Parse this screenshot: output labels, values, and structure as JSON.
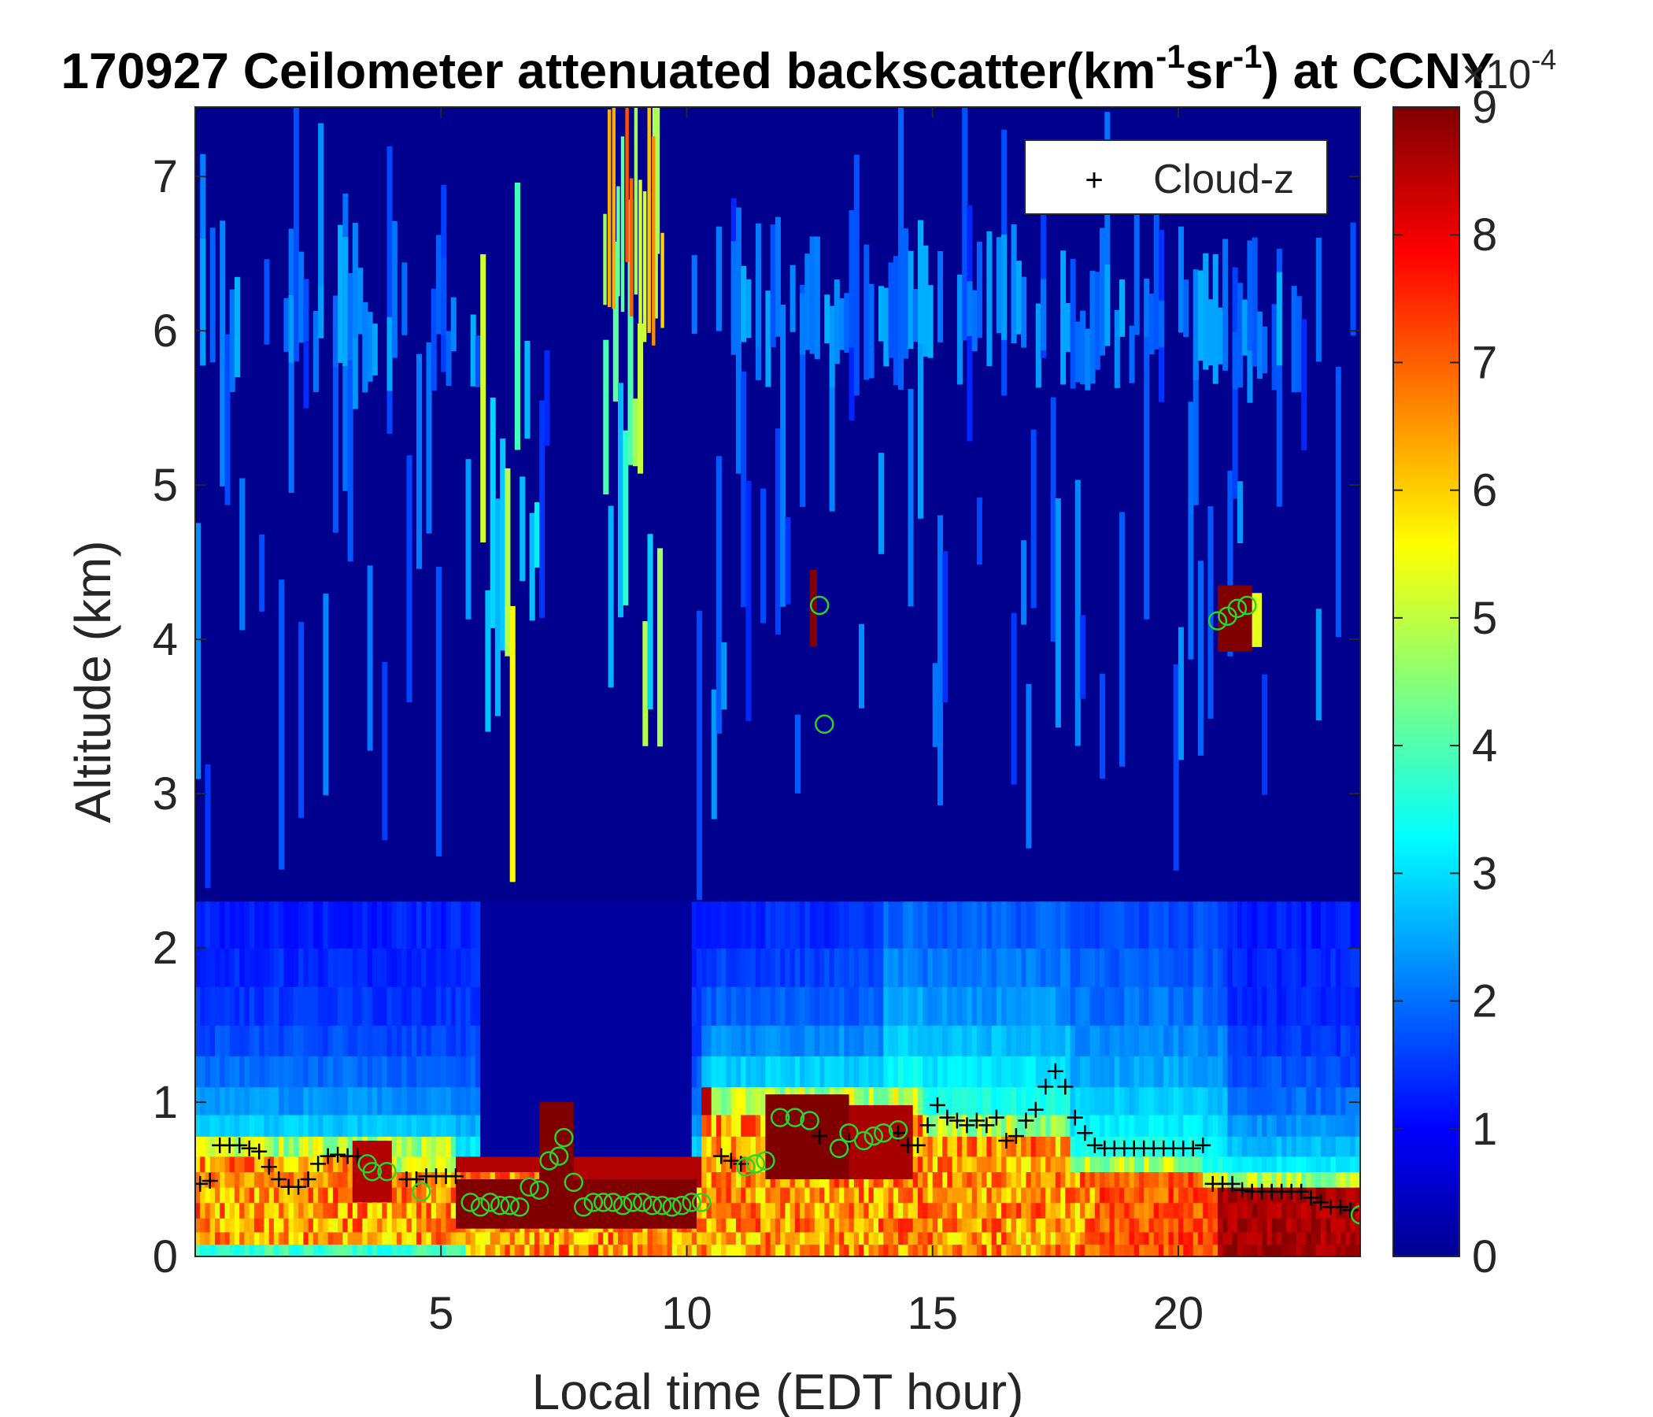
{
  "chart_data": {
    "type": "heatmap",
    "title": {
      "prefix": "170927 Ceilometer attenuated backscatter(km",
      "sup1": "-1",
      "mid": "sr",
      "sup2": "-1",
      "suffix": ") at CCNY"
    },
    "xlabel": "Local time (EDT hour)",
    "ylabel": "Altitude (km)",
    "xlim": [
      0,
      23.7
    ],
    "ylim": [
      0,
      7.45
    ],
    "xticks": [
      5,
      10,
      15,
      20
    ],
    "yticks": [
      0,
      1,
      2,
      3,
      4,
      5,
      6,
      7
    ],
    "colorbar": {
      "colormap": "jet",
      "range": [
        0,
        9
      ],
      "ticks": [
        0,
        1,
        2,
        3,
        4,
        5,
        6,
        7,
        8,
        9
      ],
      "exponent_base": "×10",
      "exponent": "-4"
    },
    "legend": {
      "position": "top-right",
      "label": "Cloud-z",
      "marker": "+"
    },
    "background_color": "#00008f",
    "series": [
      {
        "name": "Cloud-z",
        "marker": "plus",
        "color": "#000000",
        "x": [
          0.1,
          0.3,
          0.5,
          0.7,
          0.9,
          1.1,
          1.3,
          1.5,
          1.7,
          1.9,
          2.1,
          2.3,
          2.5,
          2.7,
          2.9,
          3.1,
          3.3,
          4.3,
          4.5,
          4.7,
          4.9,
          5.1,
          5.3,
          10.7,
          10.9,
          11.1,
          12.7,
          13.3,
          14.3,
          14.5,
          14.7,
          14.9,
          15.1,
          15.3,
          15.5,
          15.7,
          15.9,
          16.1,
          16.3,
          16.5,
          16.7,
          16.9,
          17.1,
          17.3,
          17.5,
          17.7,
          17.9,
          18.1,
          18.3,
          18.5,
          18.7,
          18.9,
          19.1,
          19.3,
          19.5,
          19.7,
          19.9,
          20.1,
          20.3,
          20.5,
          20.7,
          20.9,
          21.1,
          21.3,
          21.5,
          21.7,
          21.9,
          22.1,
          22.3,
          22.5,
          22.7,
          22.9,
          23.1,
          23.3,
          23.5
        ],
        "y": [
          0.47,
          0.49,
          0.72,
          0.72,
          0.72,
          0.7,
          0.68,
          0.58,
          0.5,
          0.45,
          0.45,
          0.5,
          0.6,
          0.65,
          0.66,
          0.65,
          0.65,
          0.5,
          0.5,
          0.52,
          0.52,
          0.52,
          0.52,
          0.65,
          0.62,
          0.6,
          0.78,
          0.75,
          0.8,
          0.72,
          0.72,
          0.85,
          0.98,
          0.9,
          0.88,
          0.85,
          0.88,
          0.85,
          0.9,
          0.75,
          0.78,
          0.88,
          0.95,
          1.1,
          1.2,
          1.1,
          0.9,
          0.8,
          0.72,
          0.7,
          0.7,
          0.7,
          0.7,
          0.7,
          0.7,
          0.7,
          0.7,
          0.7,
          0.7,
          0.72,
          0.47,
          0.47,
          0.47,
          0.43,
          0.42,
          0.42,
          0.42,
          0.42,
          0.42,
          0.42,
          0.38,
          0.35,
          0.32,
          0.32,
          0.3
        ]
      },
      {
        "name": "",
        "marker": "circle",
        "color": "#2bd32b",
        "x": [
          3.5,
          3.6,
          3.9,
          4.6,
          5.6,
          5.8,
          6.0,
          6.2,
          6.4,
          6.6,
          6.8,
          7.0,
          7.2,
          7.4,
          7.5,
          7.7,
          7.9,
          8.1,
          8.3,
          8.5,
          8.7,
          8.9,
          9.1,
          9.3,
          9.5,
          9.7,
          9.9,
          10.1,
          10.3,
          11.2,
          11.4,
          11.6,
          11.9,
          12.2,
          12.5,
          12.7,
          12.8,
          13.1,
          13.3,
          13.6,
          13.8,
          14.0,
          14.3,
          20.8,
          21.0,
          21.2,
          21.4,
          23.7
        ],
        "y": [
          0.6,
          0.55,
          0.55,
          0.42,
          0.35,
          0.32,
          0.35,
          0.33,
          0.33,
          0.32,
          0.45,
          0.43,
          0.62,
          0.65,
          0.77,
          0.48,
          0.32,
          0.35,
          0.35,
          0.35,
          0.33,
          0.35,
          0.35,
          0.33,
          0.33,
          0.32,
          0.33,
          0.35,
          0.35,
          0.58,
          0.6,
          0.62,
          0.9,
          0.9,
          0.88,
          4.22,
          3.45,
          0.7,
          0.8,
          0.75,
          0.78,
          0.8,
          0.82,
          4.12,
          4.15,
          4.2,
          4.22,
          0.27
        ]
      }
    ]
  }
}
